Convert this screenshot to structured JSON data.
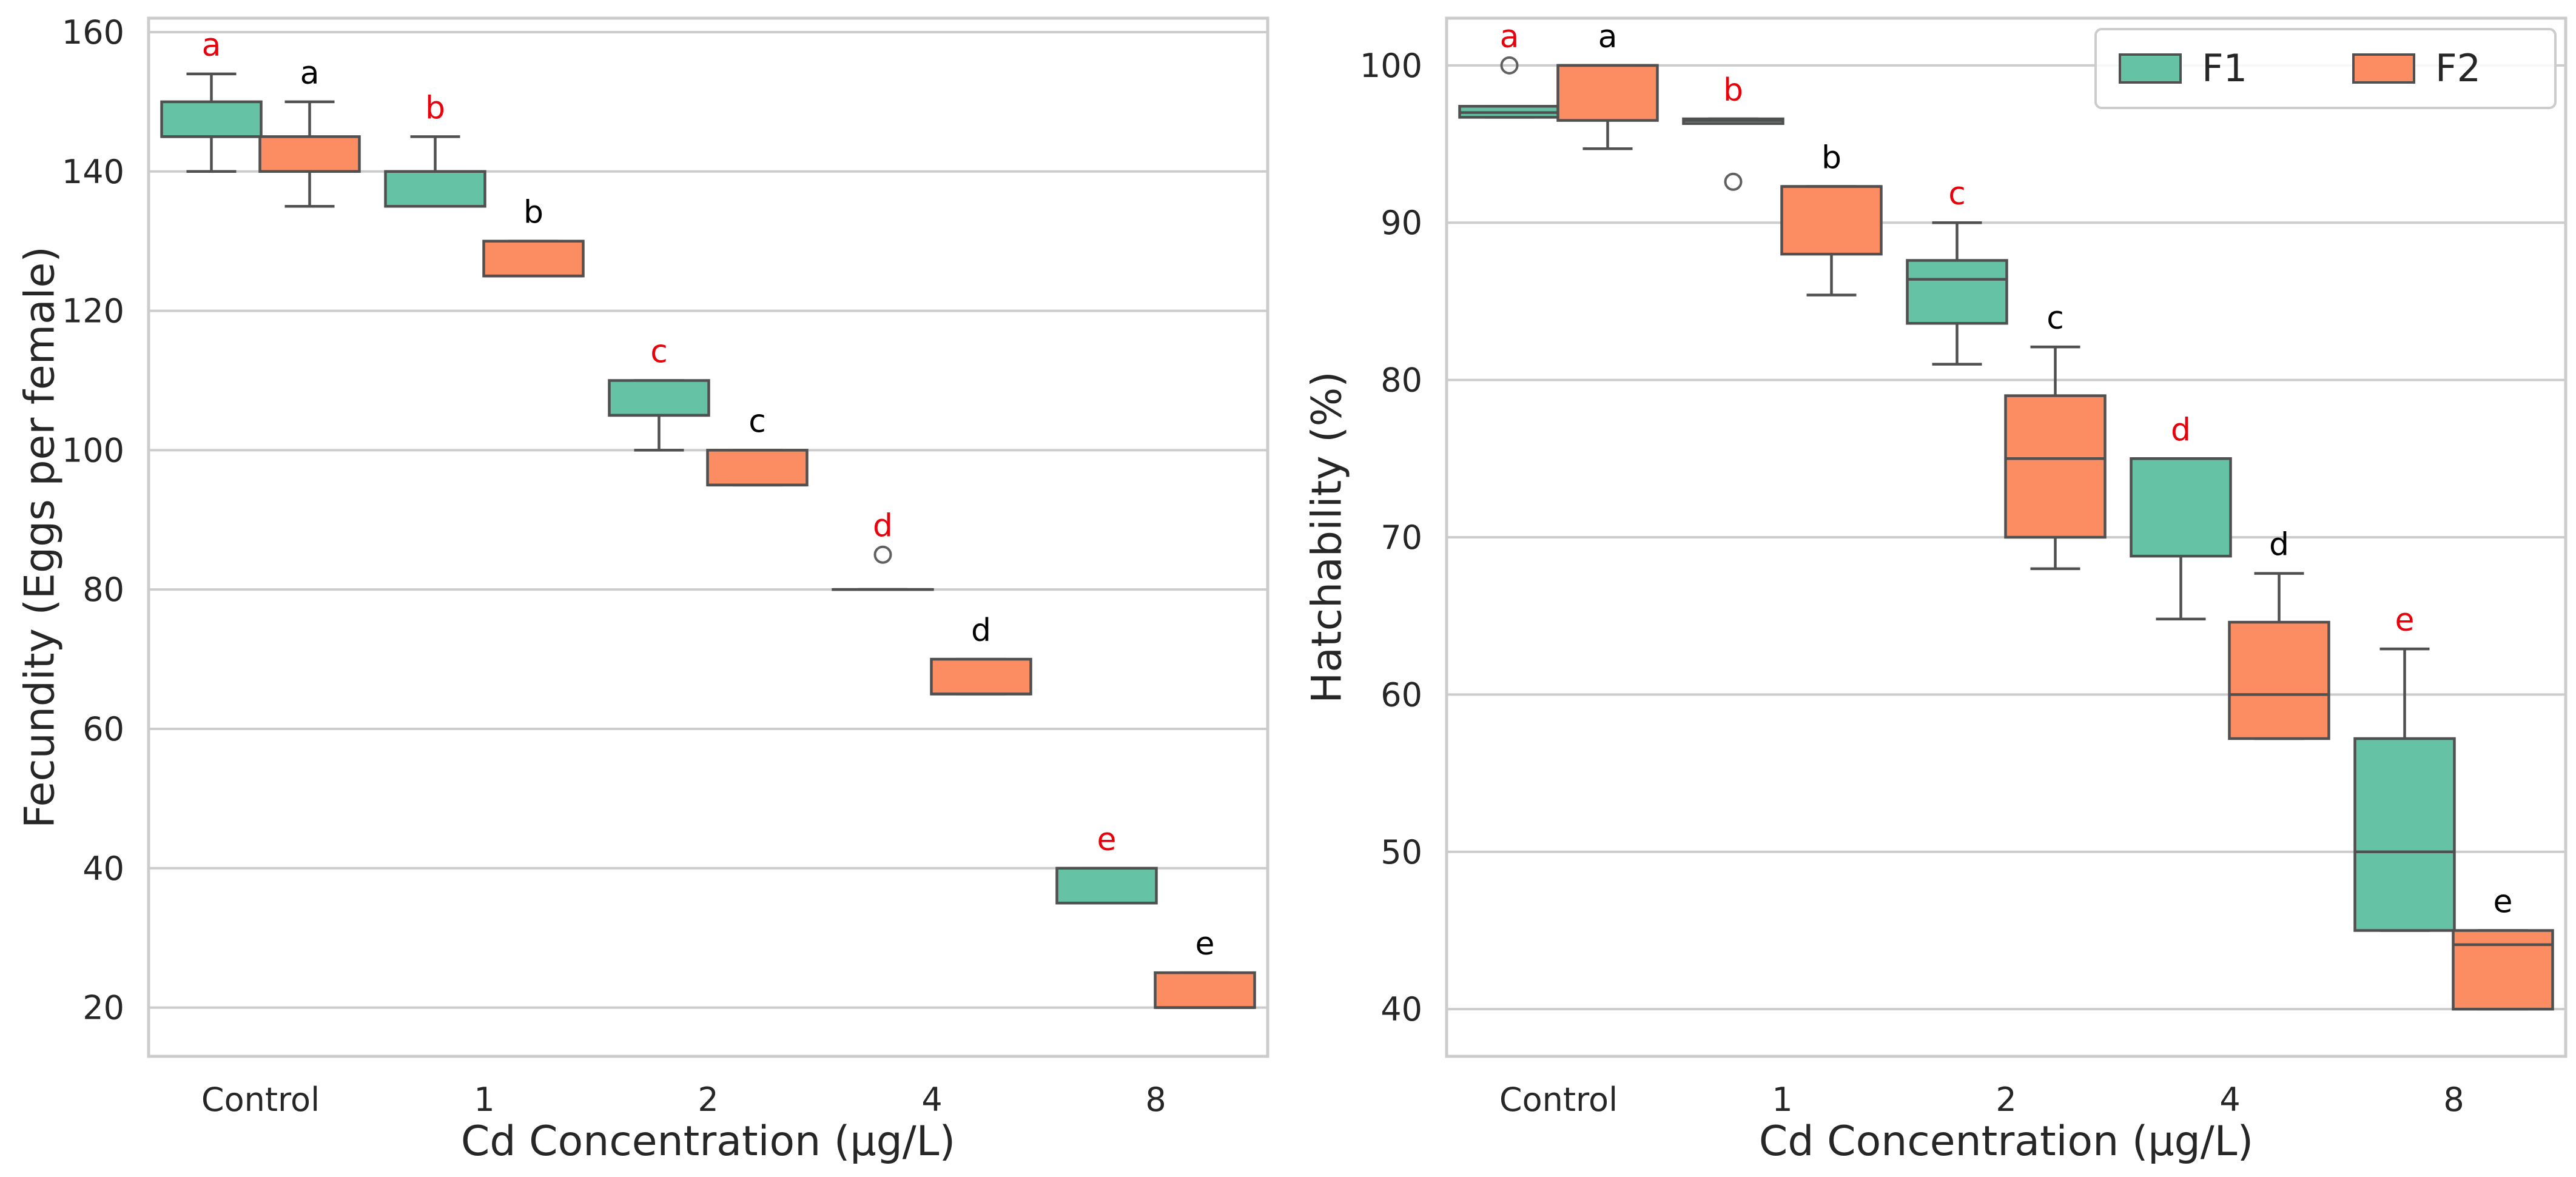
{
  "colors": {
    "F1": "#66c2a5",
    "F2": "#fc8d62",
    "letter_F1": "#e8000b",
    "letter_F2": "#000000"
  },
  "chart_data": [
    {
      "type": "box",
      "xlabel": "Cd Concentration (μg/L)",
      "ylabel": "Fecundity (Eggs per female)",
      "ylim": [
        13,
        162
      ],
      "yticks": [
        20,
        40,
        60,
        80,
        100,
        120,
        140,
        160
      ],
      "categories": [
        "Control",
        "1",
        "2",
        "4",
        "8"
      ],
      "series": [
        {
          "name": "F1",
          "boxes": [
            {
              "min": 140,
              "q1": 145,
              "median": 145,
              "q3": 150,
              "max": 154,
              "fliers": [],
              "letter": "a"
            },
            {
              "min": 135,
              "q1": 135,
              "median": 135,
              "q3": 140,
              "max": 145,
              "fliers": [],
              "letter": "b"
            },
            {
              "min": 100,
              "q1": 105,
              "median": 105,
              "q3": 110,
              "max": 110,
              "fliers": [],
              "letter": "c"
            },
            {
              "min": 80,
              "q1": 80,
              "median": 80,
              "q3": 80,
              "max": 80,
              "fliers": [
                85
              ],
              "letter": "d"
            },
            {
              "min": 35,
              "q1": 35,
              "median": 35,
              "q3": 40,
              "max": 40,
              "fliers": [],
              "letter": "e"
            }
          ]
        },
        {
          "name": "F2",
          "boxes": [
            {
              "min": 135,
              "q1": 140,
              "median": 140,
              "q3": 145,
              "max": 150,
              "fliers": [],
              "letter": "a"
            },
            {
              "min": 125,
              "q1": 125,
              "median": 125,
              "q3": 130,
              "max": 130,
              "fliers": [],
              "letter": "b"
            },
            {
              "min": 95,
              "q1": 95,
              "median": 95,
              "q3": 100,
              "max": 100,
              "fliers": [],
              "letter": "c"
            },
            {
              "min": 65,
              "q1": 65,
              "median": 65,
              "q3": 70,
              "max": 70,
              "fliers": [],
              "letter": "d"
            },
            {
              "min": 20,
              "q1": 20,
              "median": 20,
              "q3": 25,
              "max": 25,
              "fliers": [],
              "letter": "e"
            }
          ]
        }
      ]
    },
    {
      "type": "box",
      "xlabel": "Cd Concentration (μg/L)",
      "ylabel": "Hatchability (%)",
      "ylim": [
        37,
        103
      ],
      "yticks": [
        40,
        50,
        60,
        70,
        80,
        90,
        100
      ],
      "categories": [
        "Control",
        "1",
        "2",
        "4",
        "8"
      ],
      "legend": {
        "position": "top-right",
        "entries": [
          "F1",
          "F2"
        ]
      },
      "series": [
        {
          "name": "F1",
          "boxes": [
            {
              "min": 96.7,
              "q1": 96.7,
              "median": 97.0,
              "q3": 97.4,
              "max": 97.4,
              "fliers": [
                100
              ],
              "letter": "a"
            },
            {
              "min": 96.3,
              "q1": 96.3,
              "median": 96.5,
              "q3": 96.6,
              "max": 96.6,
              "fliers": [
                92.6
              ],
              "letter": "b"
            },
            {
              "min": 81.0,
              "q1": 83.6,
              "median": 86.4,
              "q3": 87.6,
              "max": 90.0,
              "fliers": [],
              "letter": "c"
            },
            {
              "min": 64.8,
              "q1": 68.8,
              "median": 75.0,
              "q3": 75.0,
              "max": 75.0,
              "fliers": [],
              "letter": "d"
            },
            {
              "min": 45.0,
              "q1": 45.0,
              "median": 50.0,
              "q3": 57.2,
              "max": 62.9,
              "fliers": [],
              "letter": "e"
            }
          ]
        },
        {
          "name": "F2",
          "boxes": [
            {
              "min": 94.7,
              "q1": 96.5,
              "median": 100,
              "q3": 100,
              "max": 100,
              "fliers": [],
              "letter": "a"
            },
            {
              "min": 85.4,
              "q1": 88.0,
              "median": 92.3,
              "q3": 92.3,
              "max": 92.3,
              "fliers": [],
              "letter": "b"
            },
            {
              "min": 68.0,
              "q1": 70.0,
              "median": 75.0,
              "q3": 79.0,
              "max": 82.1,
              "fliers": [],
              "letter": "c"
            },
            {
              "min": 57.2,
              "q1": 57.2,
              "median": 60.0,
              "q3": 64.6,
              "max": 67.7,
              "fliers": [],
              "letter": "d"
            },
            {
              "min": 40.0,
              "q1": 40.0,
              "median": 44.1,
              "q3": 45.0,
              "max": 45.0,
              "fliers": [],
              "letter": "e"
            }
          ]
        }
      ]
    }
  ]
}
